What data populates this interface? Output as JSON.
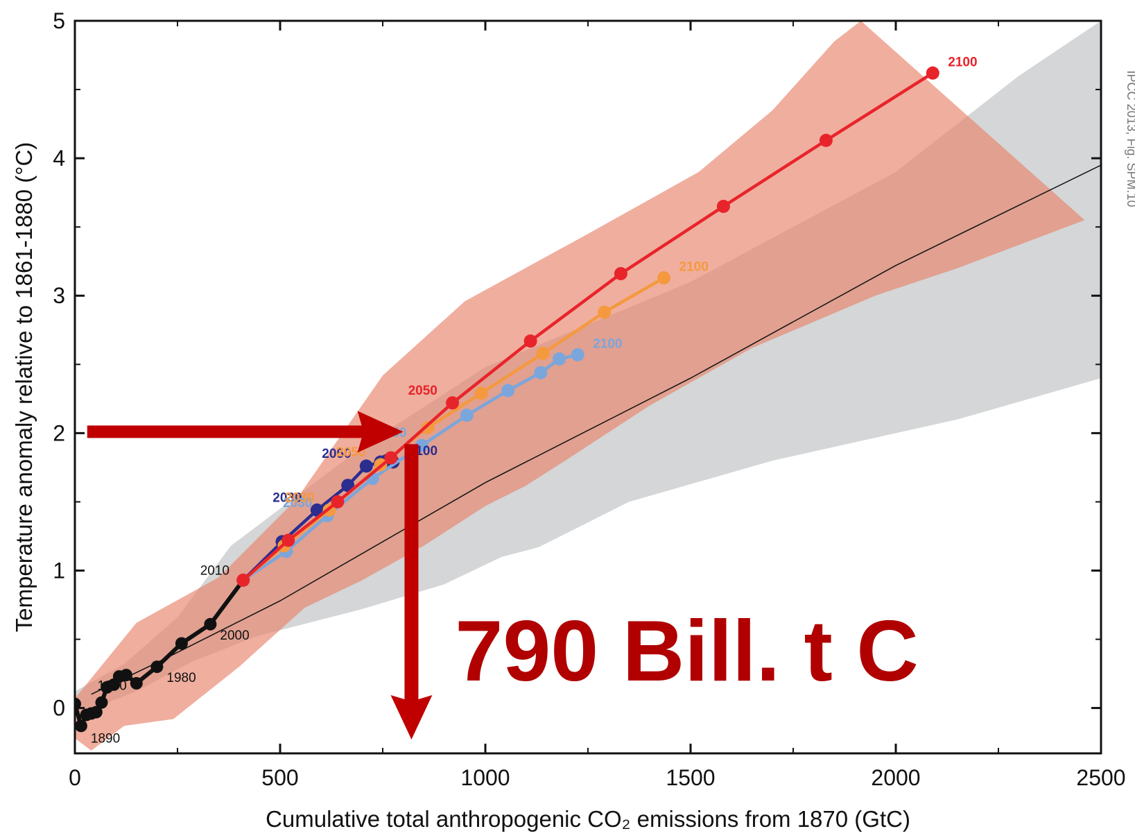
{
  "chart_data": {
    "type": "line",
    "xlabel": "Cumulative total anthropogenic CO₂ emissions from 1870 (GtC)",
    "ylabel": "Temperature anomaly relative to 1861-1880 (°C)",
    "xlim": [
      0,
      2500
    ],
    "ylim": [
      -0.33,
      5
    ],
    "x_ticks": [
      "0",
      "500",
      "1000",
      "1500",
      "2000",
      "2500"
    ],
    "y_ticks": [
      "0",
      "1",
      "2",
      "3",
      "4",
      "5"
    ],
    "x_tick_values": [
      0,
      500,
      1000,
      1500,
      2000,
      2500
    ],
    "y_tick_values": [
      0,
      1,
      2,
      3,
      4,
      5
    ],
    "credit": "IPCC 2013, Fig. SPM.10",
    "series": [
      {
        "color": "#111111",
        "points": [
          [
            0,
            0.03
          ],
          [
            15,
            -0.13
          ],
          [
            28,
            -0.05
          ],
          [
            40,
            -0.04
          ],
          [
            52,
            -0.03
          ],
          [
            65,
            0.04
          ],
          [
            78,
            0.15
          ],
          [
            95,
            0.17
          ],
          [
            108,
            0.23
          ],
          [
            125,
            0.24
          ],
          [
            150,
            0.18
          ],
          [
            200,
            0.3
          ],
          [
            260,
            0.47
          ],
          [
            330,
            0.61
          ],
          [
            410,
            0.93
          ]
        ],
        "labels": [
          {
            "text": "1890",
            "x": 15,
            "y": -0.13
          },
          {
            "text": "1950",
            "x": 65,
            "y": 0.04
          },
          {
            "text": "1980",
            "x": 200,
            "y": 0.3
          },
          {
            "text": "2000",
            "x": 330,
            "y": 0.61
          },
          {
            "text": "2010",
            "x": 410,
            "y": 0.93
          }
        ]
      },
      {
        "color": "#2b2d8f",
        "points": [
          [
            410,
            0.93
          ],
          [
            505,
            1.21
          ],
          [
            590,
            1.44
          ],
          [
            665,
            1.62
          ],
          [
            710,
            1.76
          ],
          [
            745,
            1.79
          ],
          [
            760,
            1.8
          ],
          [
            775,
            1.79
          ]
        ],
        "labels": [
          {
            "text": "2030",
            "x": 590,
            "y": 1.44
          },
          {
            "text": "2050",
            "x": 710,
            "y": 1.76
          },
          {
            "text": "2100",
            "x": 775,
            "y": 1.79
          }
        ]
      },
      {
        "color": "#7aa6dc",
        "points": [
          [
            410,
            0.93
          ],
          [
            515,
            1.14
          ],
          [
            615,
            1.4
          ],
          [
            725,
            1.67
          ],
          [
            845,
            1.91
          ],
          [
            955,
            2.13
          ],
          [
            1055,
            2.31
          ],
          [
            1135,
            2.44
          ],
          [
            1180,
            2.54
          ],
          [
            1225,
            2.57
          ]
        ],
        "labels": [
          {
            "text": "2030",
            "x": 615,
            "y": 1.4
          },
          {
            "text": "2050",
            "x": 845,
            "y": 1.91
          },
          {
            "text": "2100",
            "x": 1225,
            "y": 2.57
          }
        ]
      },
      {
        "color": "#f5993f",
        "points": [
          [
            410,
            0.93
          ],
          [
            510,
            1.18
          ],
          [
            620,
            1.44
          ],
          [
            745,
            1.77
          ],
          [
            860,
            2.04
          ],
          [
            990,
            2.29
          ],
          [
            1140,
            2.58
          ],
          [
            1290,
            2.88
          ],
          [
            1435,
            3.13
          ]
        ],
        "labels": [
          {
            "text": "2030",
            "x": 620,
            "y": 1.44
          },
          {
            "text": "2050",
            "x": 745,
            "y": 1.77
          },
          {
            "text": "2100",
            "x": 1435,
            "y": 3.13
          }
        ]
      },
      {
        "color": "#e8242b",
        "points": [
          [
            410,
            0.93
          ],
          [
            520,
            1.22
          ],
          [
            640,
            1.5
          ],
          [
            770,
            1.82
          ],
          [
            920,
            2.22
          ],
          [
            1110,
            2.67
          ],
          [
            1330,
            3.16
          ],
          [
            1580,
            3.65
          ],
          [
            1830,
            4.13
          ],
          [
            2090,
            4.62
          ]
        ],
        "labels": [
          {
            "text": "2050",
            "x": 920,
            "y": 2.22
          },
          {
            "text": "2100",
            "x": 2090,
            "y": 4.62
          }
        ]
      }
    ],
    "mean_line": [
      [
        40,
        0.1
      ],
      [
        200,
        0.33
      ],
      [
        500,
        0.78
      ],
      [
        1000,
        1.64
      ],
      [
        1500,
        2.4
      ],
      [
        2000,
        3.22
      ],
      [
        2500,
        3.95
      ]
    ],
    "bands": [
      {
        "color": "#9fa3a6",
        "opacity": 0.45,
        "upper": [
          [
            0,
            0.12
          ],
          [
            120,
            0.32
          ],
          [
            250,
            0.66
          ],
          [
            380,
            1.18
          ],
          [
            700,
            1.9
          ],
          [
            1000,
            2.48
          ],
          [
            1500,
            3.1
          ],
          [
            2000,
            3.9
          ],
          [
            2300,
            4.6
          ],
          [
            2500,
            5.0
          ]
        ],
        "lower": [
          [
            2500,
            2.4
          ],
          [
            2150,
            2.1
          ],
          [
            1700,
            1.8
          ],
          [
            1350,
            1.5
          ],
          [
            1130,
            1.17
          ],
          [
            1040,
            1.1
          ],
          [
            900,
            0.9
          ],
          [
            700,
            0.72
          ],
          [
            440,
            0.52
          ],
          [
            280,
            0.33
          ],
          [
            150,
            0.12
          ],
          [
            0,
            -0.05
          ]
        ]
      },
      {
        "color": "#e8826a",
        "opacity": 0.65,
        "upper": [
          [
            0,
            0.07
          ],
          [
            150,
            0.62
          ],
          [
            350,
            0.95
          ],
          [
            540,
            1.52
          ],
          [
            750,
            2.42
          ],
          [
            950,
            2.96
          ],
          [
            1250,
            3.45
          ],
          [
            1520,
            3.9
          ],
          [
            1700,
            4.35
          ],
          [
            1850,
            4.85
          ],
          [
            1915,
            5.0
          ]
        ],
        "lower": [
          [
            2460,
            3.55
          ],
          [
            2150,
            3.2
          ],
          [
            1950,
            3.0
          ],
          [
            1650,
            2.62
          ],
          [
            1400,
            2.2
          ],
          [
            1200,
            1.81
          ],
          [
            1100,
            1.62
          ],
          [
            1000,
            1.47
          ],
          [
            850,
            1.18
          ],
          [
            700,
            0.93
          ],
          [
            560,
            0.73
          ],
          [
            400,
            0.3
          ],
          [
            240,
            -0.08
          ],
          [
            120,
            -0.13
          ],
          [
            40,
            -0.31
          ],
          [
            0,
            -0.22
          ]
        ]
      }
    ],
    "annotations": {
      "arrow_h": {
        "from": [
          30,
          2.01
        ],
        "to": [
          800,
          2.01
        ],
        "color": "#c00000"
      },
      "arrow_v": {
        "from": [
          820,
          1.92
        ],
        "to": [
          820,
          -0.33
        ],
        "color": "#c00000"
      },
      "big_text": {
        "text": "790 Bill. t C",
        "x": 1550,
        "y": 0.3,
        "color": "#b00000"
      }
    }
  }
}
